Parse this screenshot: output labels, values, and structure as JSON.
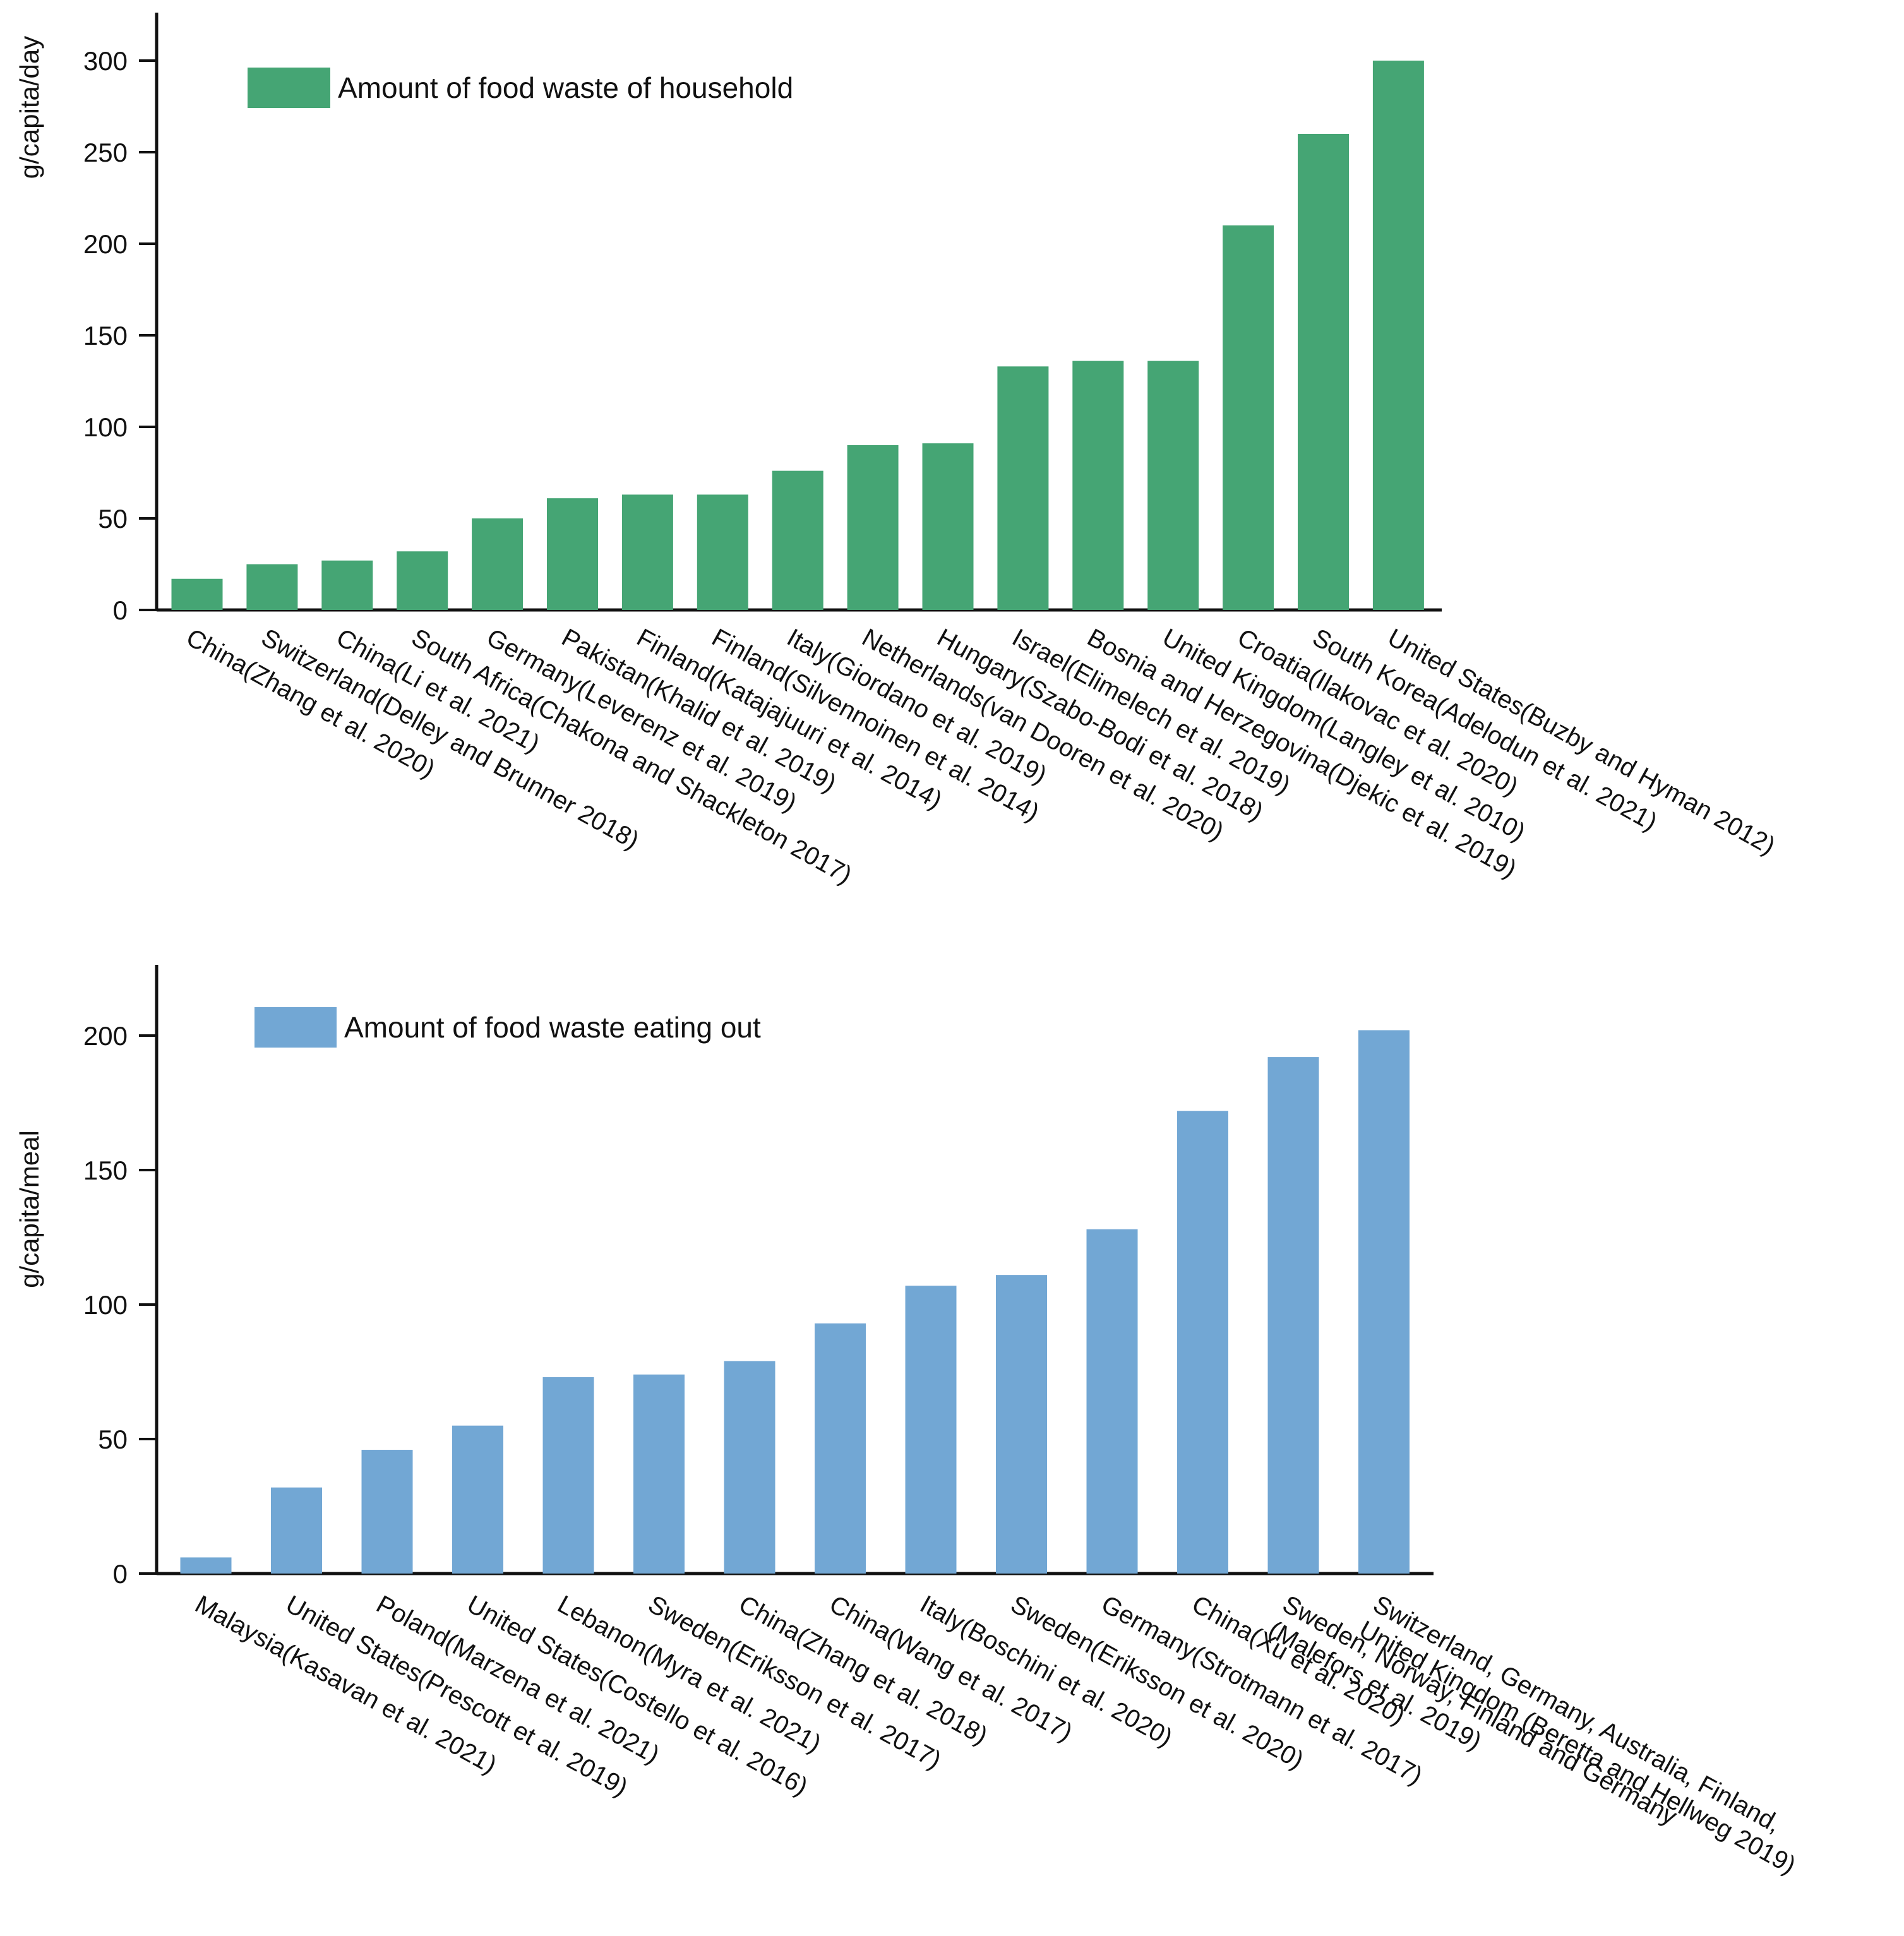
{
  "chart_data": [
    {
      "type": "bar",
      "title": "",
      "xlabel": "",
      "ylabel": "g/capita/day",
      "ylim": [
        0,
        320
      ],
      "yticks": [
        0,
        50,
        100,
        150,
        200,
        250,
        300
      ],
      "legend": "top-left",
      "grid": false,
      "color": "#45a574",
      "series": [
        {
          "name": "Amount of food waste of household",
          "values": [
            17,
            25,
            27,
            32,
            50,
            61,
            63,
            63,
            76,
            90,
            91,
            133,
            136,
            136,
            210,
            260,
            300
          ]
        }
      ],
      "categories": [
        "China(Zhang et al. 2020)",
        "Switzerland(Delley and Brunner 2018)",
        "China(Li et al. 2021)",
        "South Africa(Chakona and Shackleton 2017)",
        "Germany(Leverenz et al. 2019)",
        "Pakistan(Khalid et al. 2019)",
        "Finland(Katajajuuri et al. 2014)",
        "Finland(Silvennoinen et al. 2014)",
        "Italy(Giordano et al. 2019)",
        "Netherlands(van Dooren et al. 2020)",
        "Hungary(Szabo-Bodi et al. 2018)",
        "Israel(Elimelech et al. 2019)",
        "Bosnia and Herzegovina(Djekic et al. 2019)",
        "United Kingdom(Langley et al. 2010)",
        "Croatia(Ilakovac et al. 2020)",
        "South Korea(Adelodun et al. 2021)",
        "United States(Buzby and Hyman 2012)"
      ]
    },
    {
      "type": "bar",
      "title": "",
      "xlabel": "",
      "ylabel": "g/capita/meal",
      "ylim": [
        0,
        225
      ],
      "yticks": [
        0,
        50,
        100,
        150,
        200
      ],
      "legend": "top-left",
      "grid": false,
      "color": "#72a7d4",
      "series": [
        {
          "name": "Amount of food waste eating out",
          "values": [
            6,
            32,
            46,
            55,
            73,
            74,
            79,
            93,
            107,
            111,
            128,
            172,
            192,
            202
          ]
        }
      ],
      "categories": [
        [
          "Malaysia(Kasavan et al. 2021)"
        ],
        [
          "United States(Prescott et al. 2019)"
        ],
        [
          "Poland(Marzena et al. 2021)"
        ],
        [
          "United States(Costello et al. 2016)"
        ],
        [
          "Lebanon(Myra et al. 2021)"
        ],
        [
          "Sweden(Eriksson et al. 2017)"
        ],
        [
          "China(Zhang et al. 2018)"
        ],
        [
          "China(Wang et al. 2017)"
        ],
        [
          "Italy(Boschini et al. 2020)"
        ],
        [
          "Sweden(Eriksson et al. 2020)"
        ],
        [
          "Germany(Strotmann et al. 2017)"
        ],
        [
          "China(Xu et al. 2020)"
        ],
        [
          "Sweden, Norway, Finland and Germany",
          "(Malefors et al. 2019)"
        ],
        [
          "Switzerland, Germany, Australia, Finland,",
          "United Kingdom (Beretta and Hellweg 2019)"
        ]
      ]
    }
  ]
}
